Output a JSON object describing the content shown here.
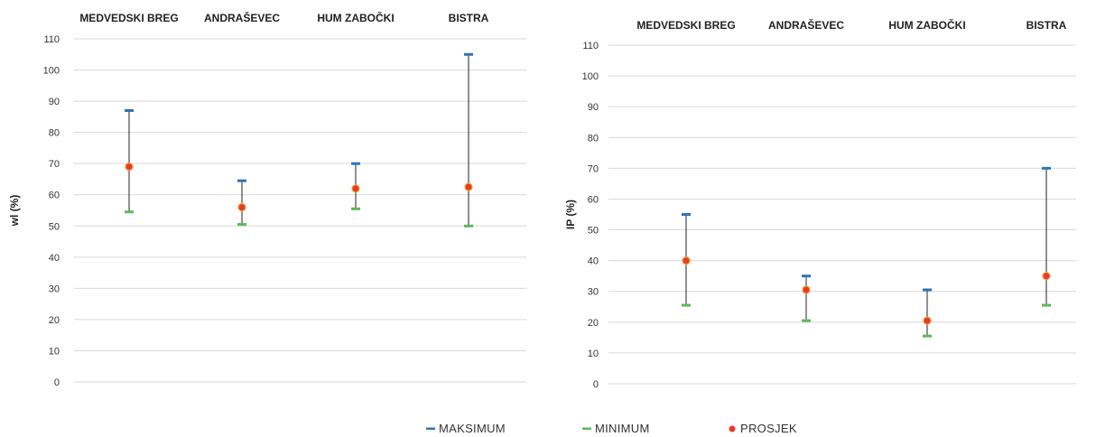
{
  "chart_data": [
    {
      "type": "scatter",
      "subtype": "high-low-average",
      "categories": [
        "MEDVEDSKI BREG",
        "ANDRAŠEVEC",
        "HUM ZABOČKI",
        "BISTRA"
      ],
      "ylabel": "wl (%)",
      "ylim": [
        0,
        110
      ],
      "yticks": [
        0,
        10,
        20,
        30,
        40,
        50,
        60,
        70,
        80,
        90,
        100,
        110
      ],
      "grid": true,
      "category_labels_position": "top",
      "series": [
        {
          "name": "MAKSIMUM",
          "values": [
            87,
            64.5,
            70,
            105
          ]
        },
        {
          "name": "MINIMUM",
          "values": [
            54.5,
            50.5,
            55.5,
            50
          ]
        },
        {
          "name": "PROSJEK",
          "values": [
            69,
            56,
            62,
            62.5
          ]
        }
      ]
    },
    {
      "type": "scatter",
      "subtype": "high-low-average",
      "categories": [
        "MEDVEDSKI BREG",
        "ANDRAŠEVEC",
        "HUM ZABOČKI",
        "BISTRA"
      ],
      "ylabel": "IP (%)",
      "ylim": [
        0,
        110
      ],
      "yticks": [
        0,
        10,
        20,
        30,
        40,
        50,
        60,
        70,
        80,
        90,
        100,
        110
      ],
      "grid": true,
      "category_labels_position": "top",
      "series": [
        {
          "name": "MAKSIMUM",
          "values": [
            55,
            35,
            30.5,
            70
          ]
        },
        {
          "name": "MINIMUM",
          "values": [
            25.5,
            20.5,
            15.5,
            25.5
          ]
        },
        {
          "name": "PROSJEK",
          "values": [
            40,
            30.5,
            20.5,
            35
          ]
        }
      ]
    }
  ],
  "legend": {
    "placement": "bottom-center",
    "items": [
      {
        "label": "MAKSIMUM",
        "color": "#2e75b6",
        "marker": "dash"
      },
      {
        "label": "MINIMUM",
        "color": "#5cb85c",
        "marker": "dash"
      },
      {
        "label": "PROSJEK",
        "color": "#e8392b",
        "marker": "dot"
      }
    ]
  },
  "colors": {
    "max": "#2e75b6",
    "min": "#5cb85c",
    "avg_fill": "#e8392b",
    "avg_ring": "#f0a030",
    "line": "#222222",
    "grid": "#d9d9d9"
  }
}
